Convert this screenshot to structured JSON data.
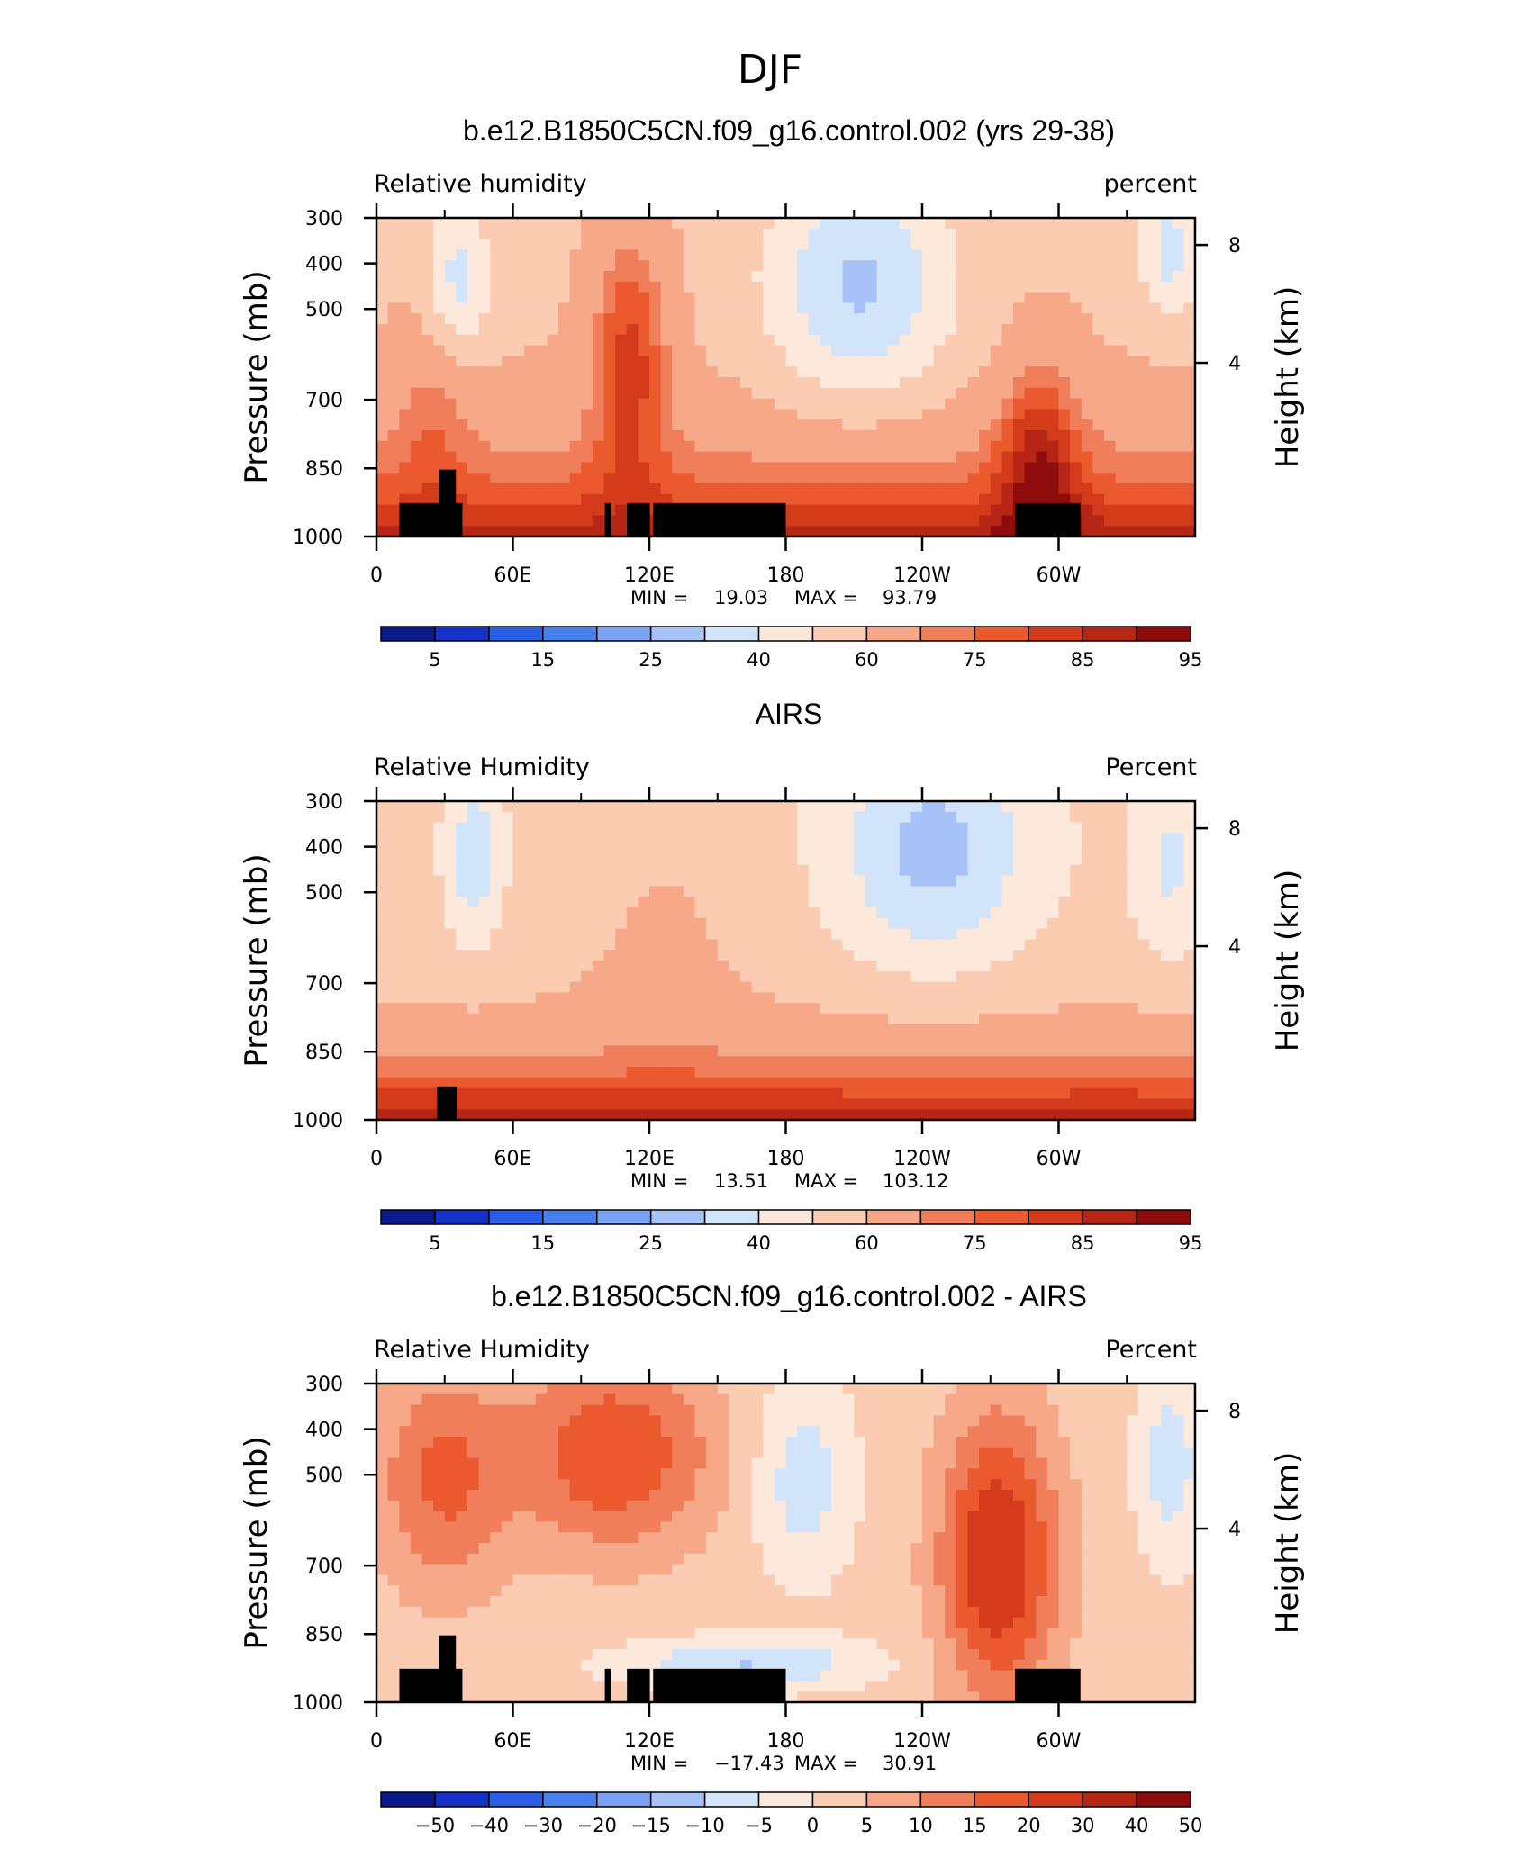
{
  "figure": {
    "main_title": "DJF"
  },
  "chart_data": [
    {
      "type": "contour",
      "title": "b.e12.B1850C5CN.f09_g16.control.002 (yrs 29-38)",
      "left_label": "Relative humidity",
      "right_label": "percent",
      "ylabel": "Pressure (mb)",
      "ylabel_right": "Height (km)",
      "x_ticks": [
        "0",
        "60E",
        "120E",
        "180",
        "120W",
        "60W"
      ],
      "y_ticks": [
        "300",
        "400",
        "500",
        "700",
        "850",
        "1000"
      ],
      "y2_ticks": [
        "8",
        "4"
      ],
      "stats": {
        "min_label": "MIN =",
        "min": "19.03",
        "max_label": "MAX =",
        "max": "93.79"
      },
      "colorbar_labels": [
        "5",
        "15",
        "25",
        "40",
        "60",
        "75",
        "85",
        "95"
      ],
      "colorbar_colors": [
        "#0a1a8a",
        "#1432c8",
        "#2a5ee6",
        "#4a80ee",
        "#7aa2f2",
        "#a6c2f6",
        "#d2e4fa",
        "#fde9dc",
        "#fbcbb2",
        "#f6a888",
        "#f07e5a",
        "#ea5a2e",
        "#d33b1a",
        "#b62614",
        "#8e0c0c"
      ],
      "range": [
        19.03,
        93.79
      ],
      "ylim": [
        1000,
        300
      ]
    },
    {
      "type": "contour",
      "title": "AIRS",
      "left_label": "Relative Humidity",
      "right_label": "Percent",
      "ylabel": "Pressure (mb)",
      "ylabel_right": "Height (km)",
      "x_ticks": [
        "0",
        "60E",
        "120E",
        "180",
        "120W",
        "60W"
      ],
      "y_ticks": [
        "300",
        "400",
        "500",
        "700",
        "850",
        "1000"
      ],
      "y2_ticks": [
        "8",
        "4"
      ],
      "stats": {
        "min_label": "MIN =",
        "min": "13.51",
        "max_label": "MAX =",
        "max": "103.12"
      },
      "colorbar_labels": [
        "5",
        "15",
        "25",
        "40",
        "60",
        "75",
        "85",
        "95"
      ],
      "colorbar_colors": [
        "#0a1a8a",
        "#1432c8",
        "#2a5ee6",
        "#4a80ee",
        "#7aa2f2",
        "#a6c2f6",
        "#d2e4fa",
        "#fde9dc",
        "#fbcbb2",
        "#f6a888",
        "#f07e5a",
        "#ea5a2e",
        "#d33b1a",
        "#b62614",
        "#8e0c0c"
      ],
      "range": [
        13.51,
        103.12
      ],
      "ylim": [
        1000,
        300
      ]
    },
    {
      "type": "contour",
      "title": "b.e12.B1850C5CN.f09_g16.control.002 - AIRS",
      "left_label": "Relative Humidity",
      "right_label": "Percent",
      "ylabel": "Pressure (mb)",
      "ylabel_right": "Height (km)",
      "x_ticks": [
        "0",
        "60E",
        "120E",
        "180",
        "120W",
        "60W"
      ],
      "y_ticks": [
        "300",
        "400",
        "500",
        "700",
        "850",
        "1000"
      ],
      "y2_ticks": [
        "8",
        "4"
      ],
      "stats": {
        "min_label": "MIN =",
        "min": "−17.43",
        "max_label": "MAX =",
        "max": "30.91"
      },
      "colorbar_labels": [
        "−50",
        "−40",
        "−30",
        "−20",
        "−15",
        "−10",
        "−5",
        "0",
        "5",
        "10",
        "15",
        "20",
        "30",
        "40",
        "50"
      ],
      "colorbar_colors": [
        "#0a1a8a",
        "#1432c8",
        "#2a5ee6",
        "#4a80ee",
        "#7aa2f2",
        "#a6c2f6",
        "#d2e4fa",
        "#fde9dc",
        "#fbcbb2",
        "#f6a888",
        "#f07e5a",
        "#ea5a2e",
        "#d33b1a",
        "#b62614",
        "#8e0c0c"
      ],
      "range": [
        -17.43,
        30.91
      ],
      "ylim": [
        1000,
        300
      ]
    }
  ]
}
